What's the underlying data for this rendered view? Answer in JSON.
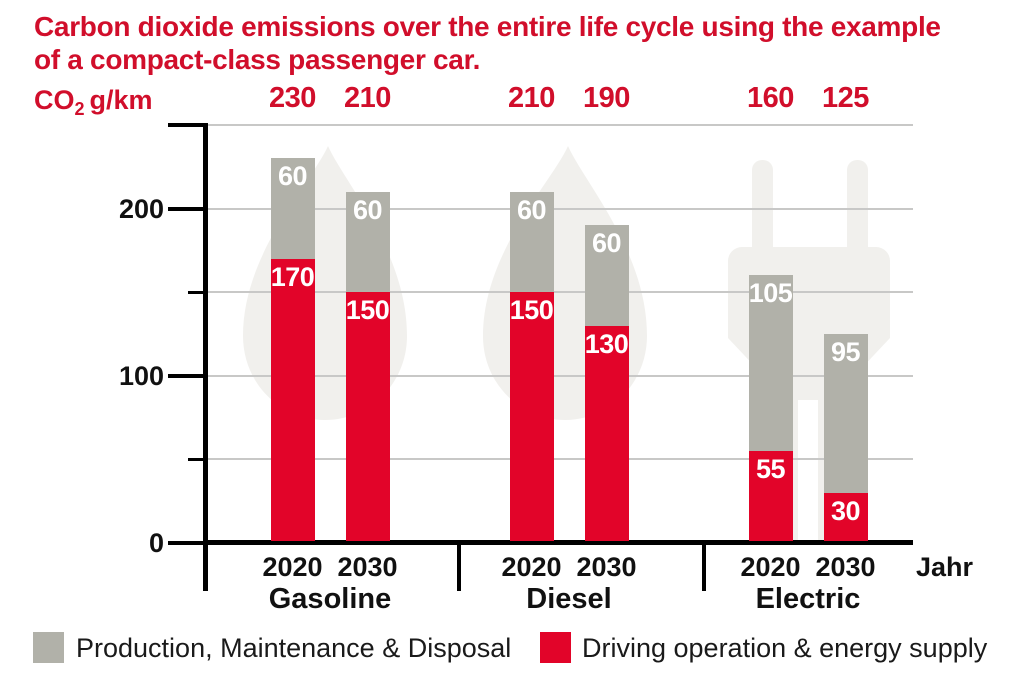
{
  "title": {
    "line1": "Carbon dioxide emissions over the entire life cycle using the example",
    "line2": "of a compact-class passenger car."
  },
  "colors": {
    "red_bar": "#e20429",
    "red_text": "#d10e2b",
    "gray_bar": "#b1b1a9",
    "watermark": "#f1f0ed",
    "grid": "#c8c8c7",
    "ink": "#111111"
  },
  "y_axis": {
    "unit_prefix": "CO",
    "unit_sub": "2",
    "unit_suffix": "g/km",
    "labeled_ticks": [
      0,
      100,
      200
    ],
    "major_ticks": [
      0,
      100,
      200,
      250
    ],
    "minor_ticks": [
      50,
      150
    ],
    "grid_values": [
      50,
      100,
      150,
      200,
      250
    ],
    "max": 250
  },
  "x_axis": {
    "axis_label": "Jahr",
    "years": [
      "2020",
      "2030"
    ],
    "groups": [
      "Gasoline",
      "Diesel",
      "Electric"
    ]
  },
  "watermarks": {
    "gasoline": "fuel-drop-icon",
    "diesel": "fuel-drop-icon",
    "electric": "power-plug-icon"
  },
  "legend": {
    "items": [
      {
        "label": "Production, Maintenance & Disposal",
        "swatch_color": "#b1b1a9"
      },
      {
        "label": "Driving operation & energy supply",
        "swatch_color": "#e20429"
      }
    ]
  },
  "chart_data": {
    "type": "bar",
    "stacked": true,
    "title": "Carbon dioxide emissions over the entire life cycle using the example of a compact-class passenger car.",
    "unit": "CO2 g/km",
    "x_axis_label": "Jahr",
    "ylim": [
      0,
      250
    ],
    "grid": true,
    "legend_position": "bottom",
    "categories": [
      "Gasoline 2020",
      "Gasoline 2030",
      "Diesel 2020",
      "Diesel 2030",
      "Electric 2020",
      "Electric 2030"
    ],
    "series": [
      {
        "name": "Driving operation & energy supply",
        "color": "#e20429",
        "values": [
          170,
          150,
          150,
          130,
          55,
          30
        ]
      },
      {
        "name": "Production, Maintenance & Disposal",
        "color": "#b1b1a9",
        "values": [
          60,
          60,
          60,
          60,
          105,
          95
        ]
      }
    ],
    "totals": [
      230,
      210,
      210,
      190,
      160,
      125
    ],
    "groups": [
      {
        "label": "Gasoline",
        "bars": [
          {
            "year": "2020",
            "driving": 170,
            "production": 60,
            "total": 230
          },
          {
            "year": "2030",
            "driving": 150,
            "production": 60,
            "total": 210
          }
        ]
      },
      {
        "label": "Diesel",
        "bars": [
          {
            "year": "2020",
            "driving": 150,
            "production": 60,
            "total": 210
          },
          {
            "year": "2030",
            "driving": 130,
            "production": 60,
            "total": 190
          }
        ]
      },
      {
        "label": "Electric",
        "bars": [
          {
            "year": "2020",
            "driving": 55,
            "production": 105,
            "total": 160
          },
          {
            "year": "2030",
            "driving": 30,
            "production": 95,
            "total": 125
          }
        ]
      }
    ]
  }
}
